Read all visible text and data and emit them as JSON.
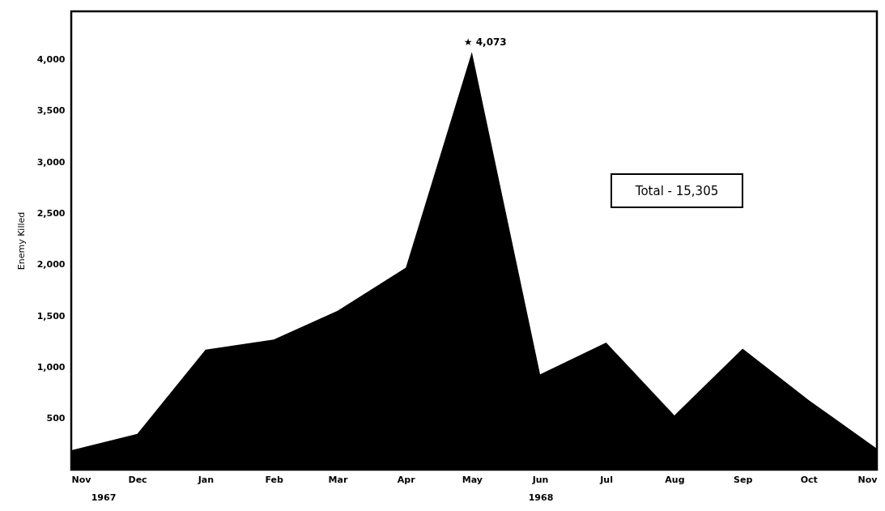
{
  "chart_data": {
    "type": "area",
    "ylabel": "Enemy Killed",
    "x": [
      "1967-11",
      "1967-12",
      "1968-01",
      "1968-02",
      "1968-03",
      "1968-04",
      "1968-05",
      "1968-06",
      "1968-07",
      "1968-08",
      "1968-09",
      "1968-10",
      "1968-11"
    ],
    "series": [
      {
        "color": "#000000",
        "values": [
          190,
          350,
          1170,
          1270,
          1550,
          1970,
          4073,
          930,
          1240,
          530,
          1180,
          680,
          205
        ],
        "value_labels": [
          null,
          null,
          null,
          null,
          null,
          null,
          "★ 4,073",
          null,
          null,
          null,
          null,
          null,
          null
        ]
      }
    ],
    "xlim": [
      "1967-11",
      "1968-11"
    ],
    "xticks": [
      {
        "value": "1967-11",
        "label": "Nov"
      },
      {
        "value": "1967-12",
        "label": "Dec"
      },
      {
        "value": "1968-01",
        "label": "Jan"
      },
      {
        "value": "1968-02",
        "label": "Feb"
      },
      {
        "value": "1968-03",
        "label": "Mar"
      },
      {
        "value": "1968-04",
        "label": "Apr"
      },
      {
        "value": "1968-05",
        "label": "May"
      },
      {
        "value": "1968-06",
        "label": "Jun"
      },
      {
        "value": "1968-07",
        "label": "Jul"
      },
      {
        "value": "1968-08",
        "label": "Aug"
      },
      {
        "value": "1968-09",
        "label": "Sep"
      },
      {
        "value": "1968-10",
        "label": "Oct"
      },
      {
        "value": "1968-11",
        "label": "Nov"
      }
    ],
    "ylim": [
      0,
      4470
    ],
    "yticks": [
      500,
      {
        "value": 1000,
        "label": "1,000"
      },
      {
        "value": 1500,
        "label": "1,500"
      },
      {
        "value": 2000,
        "label": "2,000"
      },
      {
        "value": 2500,
        "label": "2,500"
      },
      {
        "value": 3000,
        "label": "3,000"
      },
      {
        "value": 3500,
        "label": "3,500"
      },
      {
        "value": 4000,
        "label": "4,000"
      }
    ],
    "annotations": [
      "1967",
      "1968",
      "Total - 15,305"
    ],
    "grid": false
  }
}
